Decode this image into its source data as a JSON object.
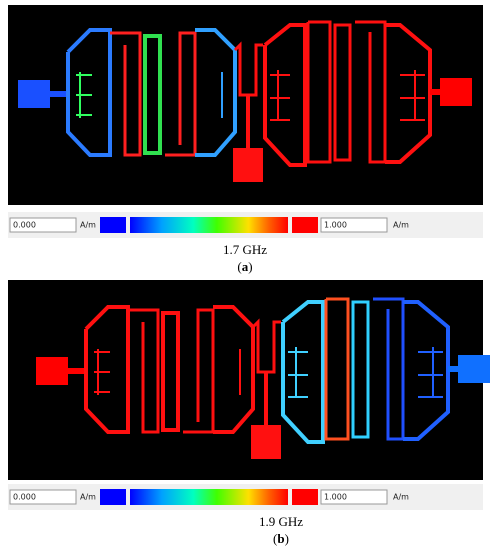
{
  "panels": [
    {
      "colorbar": {
        "min_label": "0.000",
        "min_unit": "A/m",
        "max_label": "1.000",
        "max_unit": "A/m"
      },
      "caption": "1.7 GHz",
      "label_open": "(",
      "label": "a",
      "label_close": ")"
    },
    {
      "colorbar": {
        "min_label": "0.000",
        "min_unit": "A/m",
        "max_label": "1.000",
        "max_unit": "A/m"
      },
      "caption": "1.9 GHz",
      "label_open": "(",
      "label": "b",
      "label_close": ")"
    }
  ]
}
